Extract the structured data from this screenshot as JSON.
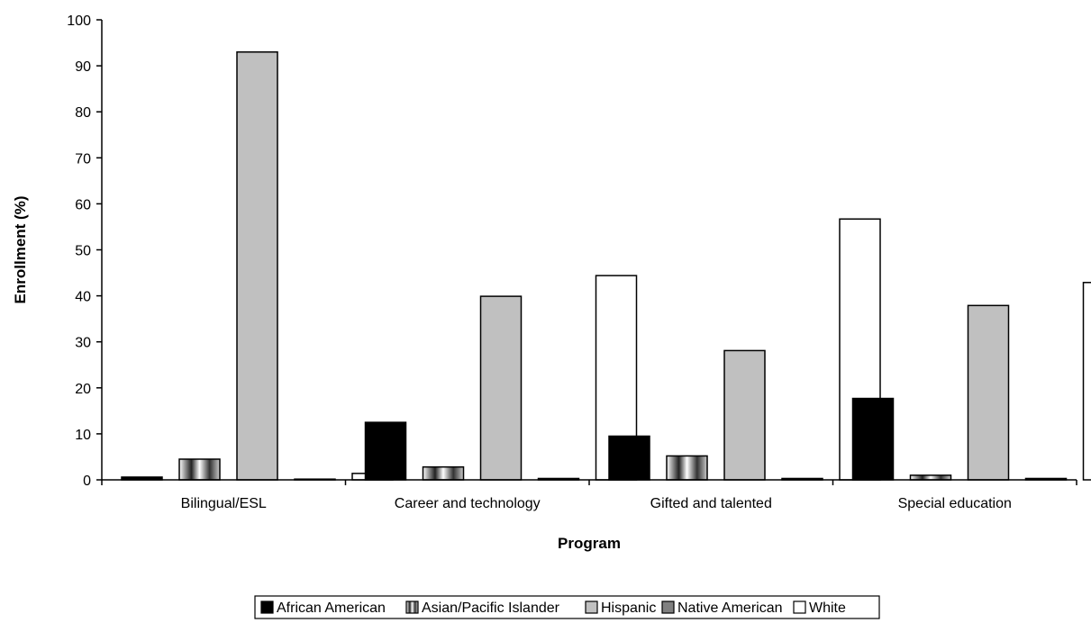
{
  "chart_data": {
    "type": "bar",
    "title": "",
    "xlabel": "Program",
    "ylabel": "Enrollment (%)",
    "ylim": [
      0,
      100
    ],
    "yticks": [
      0,
      10,
      20,
      30,
      40,
      50,
      60,
      70,
      80,
      90,
      100
    ],
    "categories": [
      "Bilingual/ESL",
      "Career and technology",
      "Gifted and talented",
      "Special education"
    ],
    "series": [
      {
        "name": "African American",
        "values": [
          0.6,
          12.5,
          9.5,
          17.7
        ],
        "fill": "solid-black"
      },
      {
        "name": "Asian/Pacific Islander",
        "values": [
          4.5,
          2.8,
          5.2,
          1.0
        ],
        "fill": "gradient-black-white"
      },
      {
        "name": "Hispanic",
        "values": [
          93.0,
          39.9,
          28.1,
          37.9
        ],
        "fill": "light-gray"
      },
      {
        "name": "Native American",
        "values": [
          0.1,
          0.3,
          0.3,
          0.3
        ],
        "fill": "dark-gray"
      },
      {
        "name": "White",
        "values": [
          1.4,
          44.4,
          56.7,
          42.9
        ],
        "fill": "white"
      }
    ],
    "colors": {
      "African American": "#000000",
      "Asian/Pacific Islander": "gradient",
      "Hispanic": "#c0c0c0",
      "Native American": "#808080",
      "White": "#ffffff"
    },
    "grid": false,
    "legend_position": "bottom-center"
  }
}
